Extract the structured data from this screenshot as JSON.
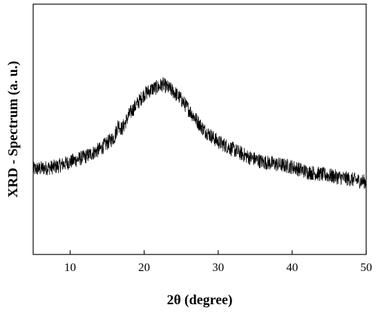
{
  "chart_data": {
    "type": "line",
    "title": "",
    "xlabel": "2θ (degree)",
    "ylabel": "XRD - Spectrum (a. u.)",
    "xlim": [
      5,
      50
    ],
    "ylim": [
      0,
      1
    ],
    "y_ticks_labeled": false,
    "grid": false,
    "legend": "none",
    "x_ticks": [
      10,
      20,
      30,
      40,
      50
    ],
    "line_color": "#000000",
    "series": [
      {
        "x": [
          5,
          8,
          10,
          12,
          14,
          16,
          16.5,
          17,
          18,
          19,
          20,
          21,
          22,
          22.5,
          23,
          24,
          25,
          26,
          27,
          28,
          30,
          32,
          34,
          36,
          38,
          40,
          42,
          44,
          46,
          48,
          50
        ],
        "values": [
          0.34,
          0.35,
          0.37,
          0.39,
          0.42,
          0.47,
          0.52,
          0.5,
          0.56,
          0.6,
          0.64,
          0.66,
          0.67,
          0.68,
          0.67,
          0.65,
          0.62,
          0.58,
          0.54,
          0.5,
          0.45,
          0.42,
          0.39,
          0.37,
          0.36,
          0.35,
          0.33,
          0.32,
          0.31,
          0.3,
          0.29
        ],
        "noise_amplitude": 0.03
      }
    ]
  }
}
